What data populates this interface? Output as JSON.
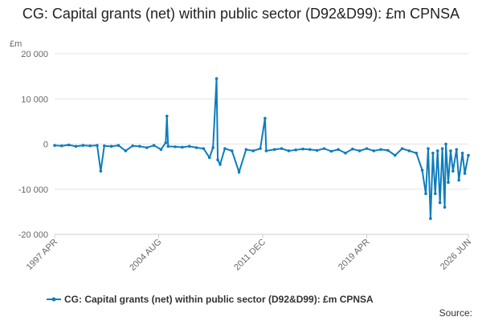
{
  "chart_data": {
    "type": "line",
    "title": "CG: Capital grants (net) within public sector (D92&D99): £m CPNSA",
    "y_label": "£m",
    "source": "Source:",
    "x": [
      "1997 APR",
      "1997 OCT",
      "1998 APR",
      "1998 OCT",
      "1999 APR",
      "1999 OCT",
      "2000 APR",
      "2000 JUL",
      "2000 OCT",
      "2001 APR",
      "2001 OCT",
      "2002 APR",
      "2002 OCT",
      "2003 APR",
      "2003 OCT",
      "2004 APR",
      "2004 OCT",
      "2005 FEB",
      "2005 MAR",
      "2005 APR",
      "2005 OCT",
      "2006 APR",
      "2006 OCT",
      "2007 APR",
      "2007 OCT",
      "2008 MAR",
      "2008 JUN",
      "2008 SEP",
      "2008 OCT",
      "2008 DEC",
      "2009 APR",
      "2009 OCT",
      "2010 APR",
      "2010 OCT",
      "2011 APR",
      "2011 OCT",
      "2012 FEB",
      "2012 MAR",
      "2012 OCT",
      "2013 APR",
      "2013 OCT",
      "2014 APR",
      "2014 OCT",
      "2015 APR",
      "2015 OCT",
      "2016 APR",
      "2016 OCT",
      "2017 APR",
      "2017 OCT",
      "2018 APR",
      "2018 OCT",
      "2019 APR",
      "2019 OCT",
      "2020 APR",
      "2020 OCT",
      "2021 APR",
      "2021 OCT",
      "2022 APR",
      "2022 OCT",
      "2023 MAR",
      "2023 JUN",
      "2023 AUG",
      "2023 OCT",
      "2023 DEC",
      "2024 FEB",
      "2024 APR",
      "2024 JUN",
      "2024 AUG",
      "2024 OCT",
      "2024 NOV",
      "2025 JAN",
      "2025 MAR",
      "2025 MAY",
      "2025 AUG",
      "2025 OCT",
      "2026 JAN",
      "2026 MAR",
      "2026 JUN"
    ],
    "series": [
      {
        "name": "CG: Capital grants (net) within public sector (D92&D99): £m CPNSA",
        "color": "#0e7cbd",
        "values": [
          -300,
          -400,
          -200,
          -500,
          -300,
          -400,
          -300,
          -6000,
          -400,
          -500,
          -300,
          -1500,
          -400,
          -500,
          -800,
          -300,
          -1200,
          300,
          6200,
          -500,
          -600,
          -700,
          -500,
          -800,
          -1000,
          -3000,
          -800,
          14500,
          -3500,
          -4500,
          -1000,
          -1500,
          -6200,
          -1200,
          -1500,
          -1000,
          5700,
          -1500,
          -1200,
          -1000,
          -1500,
          -1300,
          -1100,
          -1200,
          -1400,
          -1000,
          -1600,
          -1200,
          -2000,
          -1100,
          -1500,
          -1000,
          -1500,
          -1200,
          -1400,
          -2500,
          -1000,
          -1500,
          -2000,
          -5800,
          -11000,
          -1000,
          -16500,
          -2000,
          -11000,
          -1500,
          -13000,
          -1000,
          -14000,
          0,
          -8500,
          -1500,
          -6000,
          -1200,
          -8000,
          -2000,
          -6500,
          -2500
        ]
      }
    ],
    "xlim": [
      "1997 APR",
      "2026 JUN"
    ],
    "xticks": [
      "1997 APR",
      "2004 AUG",
      "2011 DEC",
      "2019 APR",
      "2026 JUN"
    ],
    "ylim": [
      -20000,
      20000
    ],
    "yticks": [
      {
        "value": -20000,
        "label": "-20 000"
      },
      {
        "value": -10000,
        "label": "-10 000"
      },
      0,
      {
        "value": 10000,
        "label": "10 000"
      },
      {
        "value": 20000,
        "label": "20 000"
      }
    ],
    "grid": true,
    "legend": "bottom"
  }
}
